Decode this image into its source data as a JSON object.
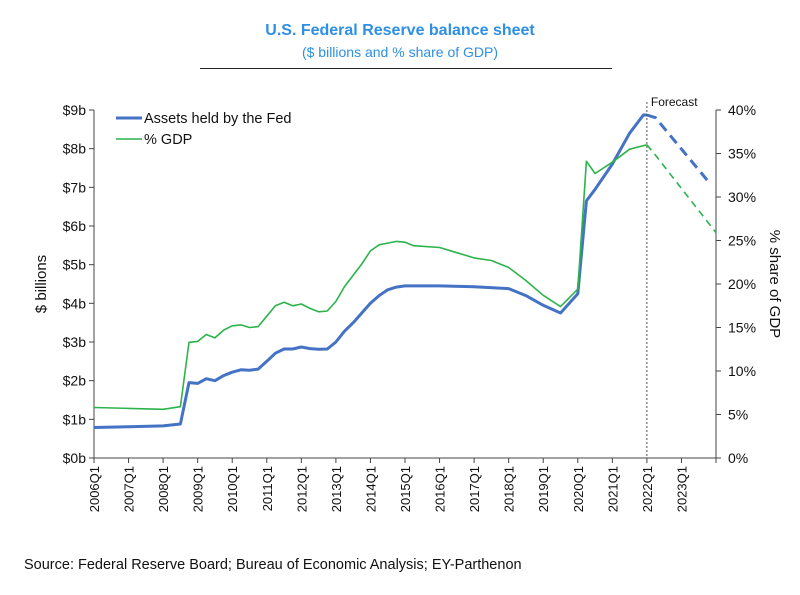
{
  "chart_data": {
    "type": "line",
    "title": "U.S. Federal Reserve balance sheet",
    "subtitle": "($ billions and % share of GDP)",
    "ylabel": "$ billions",
    "y2label": "% share of GDP",
    "ylim": [
      0,
      9
    ],
    "y2lim": [
      0,
      40
    ],
    "yticks": [
      {
        "value": 0,
        "label": "$0b"
      },
      {
        "value": 1,
        "label": "$1b"
      },
      {
        "value": 2,
        "label": "$2b"
      },
      {
        "value": 3,
        "label": "$3b"
      },
      {
        "value": 4,
        "label": "$4b"
      },
      {
        "value": 5,
        "label": "$5b"
      },
      {
        "value": 6,
        "label": "$6b"
      },
      {
        "value": 7,
        "label": "$7b"
      },
      {
        "value": 8,
        "label": "$8b"
      },
      {
        "value": 9,
        "label": "$9b"
      }
    ],
    "y2ticks": [
      {
        "value": 0,
        "label": "0%"
      },
      {
        "value": 5,
        "label": "5%"
      },
      {
        "value": 10,
        "label": "10%"
      },
      {
        "value": 15,
        "label": "15%"
      },
      {
        "value": 20,
        "label": "20%"
      },
      {
        "value": 25,
        "label": "25%"
      },
      {
        "value": 30,
        "label": "30%"
      },
      {
        "value": 35,
        "label": "35%"
      },
      {
        "value": 40,
        "label": "40%"
      }
    ],
    "xticks": [
      {
        "value": 2006.0,
        "label": "2006Q1"
      },
      {
        "value": 2007.0,
        "label": "2007Q1"
      },
      {
        "value": 2008.0,
        "label": "2008Q1"
      },
      {
        "value": 2009.0,
        "label": "2009Q1"
      },
      {
        "value": 2010.0,
        "label": "2010Q1"
      },
      {
        "value": 2011.0,
        "label": "2011Q1"
      },
      {
        "value": 2012.0,
        "label": "2012Q1"
      },
      {
        "value": 2013.0,
        "label": "2013Q1"
      },
      {
        "value": 2014.0,
        "label": "2014Q1"
      },
      {
        "value": 2015.0,
        "label": "2015Q1"
      },
      {
        "value": 2016.0,
        "label": "2016Q1"
      },
      {
        "value": 2017.0,
        "label": "2017Q1"
      },
      {
        "value": 2018.0,
        "label": "2018Q1"
      },
      {
        "value": 2019.0,
        "label": "2019Q1"
      },
      {
        "value": 2020.0,
        "label": "2020Q1"
      },
      {
        "value": 2021.0,
        "label": "2021Q1"
      },
      {
        "value": 2022.0,
        "label": "2022Q1"
      },
      {
        "value": 2023.0,
        "label": "2023Q1"
      }
    ],
    "xlim": [
      2006.0,
      2024.0
    ],
    "forecast_start": 2022.0,
    "forecast_label": "Forecast",
    "legend": {
      "position": "top-left"
    },
    "series": [
      {
        "name": "Assets held by the Fed",
        "axis": "left",
        "color": "#4472C4",
        "points": [
          [
            2006.0,
            0.79
          ],
          [
            2007.0,
            0.81
          ],
          [
            2008.0,
            0.83
          ],
          [
            2008.5,
            0.88
          ],
          [
            2008.75,
            1.95
          ],
          [
            2009.0,
            1.93
          ],
          [
            2009.25,
            2.05
          ],
          [
            2009.5,
            2.0
          ],
          [
            2009.75,
            2.13
          ],
          [
            2010.0,
            2.22
          ],
          [
            2010.25,
            2.28
          ],
          [
            2010.5,
            2.27
          ],
          [
            2010.75,
            2.3
          ],
          [
            2011.0,
            2.5
          ],
          [
            2011.25,
            2.71
          ],
          [
            2011.5,
            2.82
          ],
          [
            2011.75,
            2.82
          ],
          [
            2012.0,
            2.87
          ],
          [
            2012.25,
            2.83
          ],
          [
            2012.5,
            2.81
          ],
          [
            2012.75,
            2.82
          ],
          [
            2013.0,
            3.0
          ],
          [
            2013.25,
            3.28
          ],
          [
            2013.5,
            3.5
          ],
          [
            2013.75,
            3.75
          ],
          [
            2014.0,
            4.0
          ],
          [
            2014.25,
            4.2
          ],
          [
            2014.5,
            4.35
          ],
          [
            2014.75,
            4.42
          ],
          [
            2015.0,
            4.45
          ],
          [
            2016.0,
            4.45
          ],
          [
            2017.0,
            4.43
          ],
          [
            2018.0,
            4.38
          ],
          [
            2018.5,
            4.2
          ],
          [
            2019.0,
            3.95
          ],
          [
            2019.5,
            3.75
          ],
          [
            2020.0,
            4.25
          ],
          [
            2020.25,
            6.65
          ],
          [
            2020.5,
            6.95
          ],
          [
            2021.0,
            7.6
          ],
          [
            2021.5,
            8.4
          ],
          [
            2021.9,
            8.87
          ],
          [
            2022.0,
            8.87
          ]
        ],
        "forecast": [
          [
            2022.0,
            8.87
          ],
          [
            2022.25,
            8.8
          ],
          [
            2023.75,
            7.18
          ]
        ]
      },
      {
        "name": "% GDP",
        "axis": "right",
        "color": "#2CB34A",
        "points": [
          [
            2006.0,
            5.8
          ],
          [
            2007.0,
            5.7
          ],
          [
            2008.0,
            5.6
          ],
          [
            2008.5,
            5.9
          ],
          [
            2008.75,
            13.3
          ],
          [
            2009.0,
            13.4
          ],
          [
            2009.25,
            14.2
          ],
          [
            2009.5,
            13.8
          ],
          [
            2009.75,
            14.7
          ],
          [
            2010.0,
            15.2
          ],
          [
            2010.25,
            15.3
          ],
          [
            2010.5,
            15.0
          ],
          [
            2010.75,
            15.1
          ],
          [
            2011.0,
            16.3
          ],
          [
            2011.25,
            17.5
          ],
          [
            2011.5,
            17.9
          ],
          [
            2011.75,
            17.5
          ],
          [
            2012.0,
            17.7
          ],
          [
            2012.25,
            17.2
          ],
          [
            2012.5,
            16.8
          ],
          [
            2012.75,
            16.9
          ],
          [
            2013.0,
            18.0
          ],
          [
            2013.25,
            19.7
          ],
          [
            2013.5,
            21.0
          ],
          [
            2013.75,
            22.3
          ],
          [
            2014.0,
            23.8
          ],
          [
            2014.25,
            24.5
          ],
          [
            2014.5,
            24.7
          ],
          [
            2014.75,
            24.9
          ],
          [
            2015.0,
            24.8
          ],
          [
            2015.25,
            24.4
          ],
          [
            2016.0,
            24.2
          ],
          [
            2016.5,
            23.6
          ],
          [
            2017.0,
            23.0
          ],
          [
            2017.5,
            22.7
          ],
          [
            2018.0,
            21.9
          ],
          [
            2018.5,
            20.4
          ],
          [
            2019.0,
            18.7
          ],
          [
            2019.5,
            17.4
          ],
          [
            2020.0,
            19.4
          ],
          [
            2020.25,
            34.1
          ],
          [
            2020.5,
            32.7
          ],
          [
            2021.0,
            34.0
          ],
          [
            2021.5,
            35.5
          ],
          [
            2022.0,
            36.0
          ]
        ],
        "forecast": [
          [
            2022.0,
            36.0
          ],
          [
            2022.25,
            34.8
          ],
          [
            2024.0,
            25.9
          ]
        ]
      }
    ]
  },
  "source_note": "Source:  Federal Reserve Board; Bureau of Economic Analysis;  EY-Parthenon"
}
